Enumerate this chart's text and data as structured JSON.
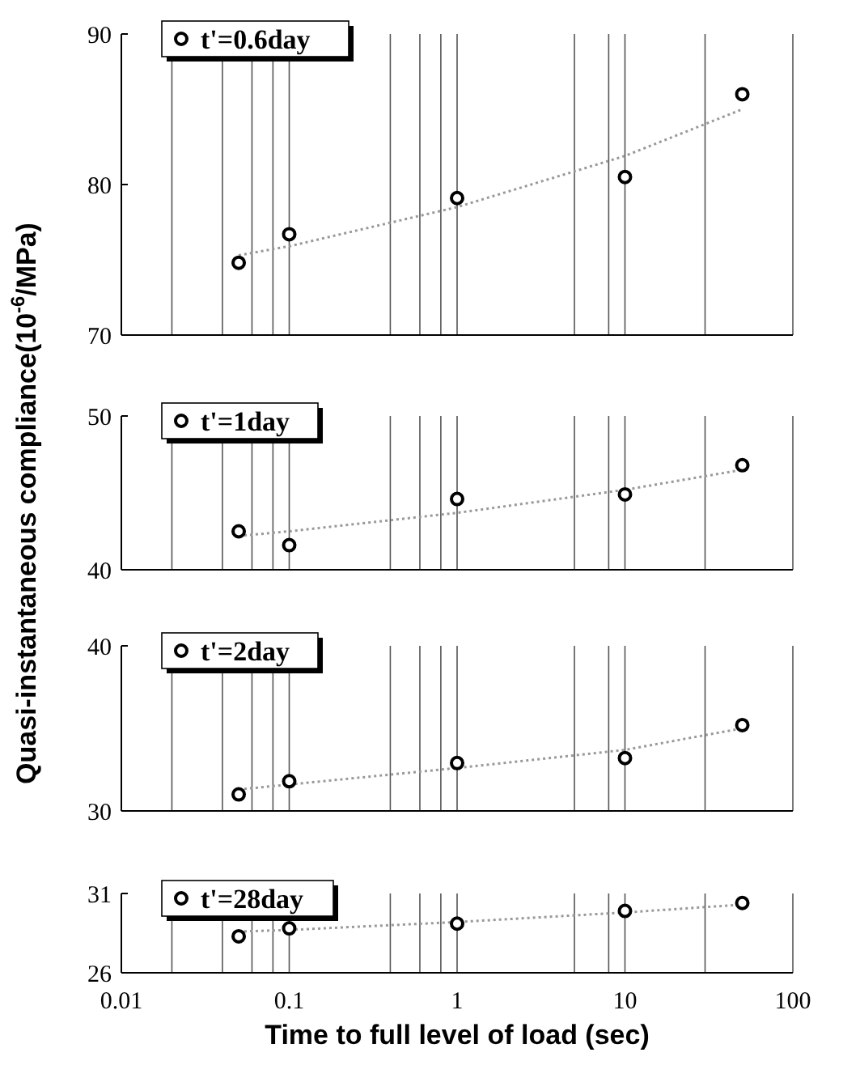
{
  "chart_data": [
    {
      "type": "scatter",
      "ylabel": "Quasi-instantaneous compliance(10$^{-6}$/MPa)",
      "xlim": [
        0.01,
        100
      ],
      "xticks": [
        0.01,
        {
          "value": 0.02,
          "label": null
        },
        {
          "value": 0.04,
          "label": null
        },
        {
          "value": 0.06,
          "label": null
        },
        {
          "value": 0.08,
          "label": null
        },
        0.1,
        {
          "value": 0.4,
          "label": null
        },
        {
          "value": 0.6,
          "label": null
        },
        {
          "value": 0.8,
          "label": null
        },
        1,
        {
          "value": 5,
          "label": null
        },
        {
          "value": 8,
          "label": null
        },
        10,
        {
          "value": 30,
          "label": null
        },
        100
      ],
      "ylim": [
        70,
        90
      ],
      "yticks": [
        70,
        80,
        90
      ],
      "log": "x",
      "grid": "x",
      "legend": "top left",
      "tick_labels": "y",
      "series": [
        {
          "name": "t'=0.6day",
          "color": "#000000",
          "marker": "circle",
          "x": [
            0.05,
            0.1,
            1,
            10,
            50
          ],
          "values": [
            74.8,
            76.7,
            79.1,
            80.5,
            86.0
          ]
        },
        {
          "type": "line",
          "color": "#999999",
          "line_style": "dotted",
          "x": [
            0.05,
            0.1,
            1,
            10,
            50
          ],
          "values": [
            75.3,
            75.9,
            78.5,
            81.9,
            85.0
          ]
        }
      ]
    },
    {
      "type": "scatter",
      "xlim": [
        0.01,
        100
      ],
      "xticks": [
        0.01,
        {
          "value": 0.02,
          "label": null
        },
        {
          "value": 0.04,
          "label": null
        },
        {
          "value": 0.06,
          "label": null
        },
        {
          "value": 0.08,
          "label": null
        },
        0.1,
        {
          "value": 0.4,
          "label": null
        },
        {
          "value": 0.6,
          "label": null
        },
        {
          "value": 0.8,
          "label": null
        },
        1,
        {
          "value": 5,
          "label": null
        },
        {
          "value": 8,
          "label": null
        },
        10,
        {
          "value": 30,
          "label": null
        },
        100
      ],
      "ylim": [
        40,
        50
      ],
      "yticks": [
        40,
        50
      ],
      "log": "x",
      "grid": "x",
      "legend": "top left",
      "tick_labels": "y",
      "series": [
        {
          "name": "t'=1day",
          "color": "#000000",
          "marker": "circle",
          "x": [
            0.05,
            0.1,
            1,
            10,
            50
          ],
          "values": [
            42.5,
            41.6,
            44.6,
            44.9,
            46.8
          ]
        },
        {
          "type": "line",
          "color": "#999999",
          "line_style": "dotted",
          "x": [
            0.05,
            0.1,
            1,
            10,
            50
          ],
          "values": [
            42.2,
            42.5,
            43.7,
            45.2,
            46.5
          ]
        }
      ]
    },
    {
      "type": "scatter",
      "xlim": [
        0.01,
        100
      ],
      "xticks": [
        0.01,
        {
          "value": 0.02,
          "label": null
        },
        {
          "value": 0.04,
          "label": null
        },
        {
          "value": 0.06,
          "label": null
        },
        {
          "value": 0.08,
          "label": null
        },
        0.1,
        {
          "value": 0.4,
          "label": null
        },
        {
          "value": 0.6,
          "label": null
        },
        {
          "value": 0.8,
          "label": null
        },
        1,
        {
          "value": 5,
          "label": null
        },
        {
          "value": 8,
          "label": null
        },
        10,
        {
          "value": 30,
          "label": null
        },
        100
      ],
      "ylim": [
        30,
        40
      ],
      "yticks": [
        30,
        40
      ],
      "log": "x",
      "grid": "x",
      "legend": "top left",
      "tick_labels": "y",
      "series": [
        {
          "name": "t'=2day",
          "color": "#000000",
          "marker": "circle",
          "x": [
            0.05,
            0.1,
            1,
            10,
            50
          ],
          "values": [
            31.0,
            31.8,
            32.9,
            33.2,
            35.2
          ]
        },
        {
          "type": "line",
          "color": "#999999",
          "line_style": "dotted",
          "x": [
            0.05,
            0.1,
            1,
            10,
            50
          ],
          "values": [
            31.3,
            31.6,
            32.6,
            33.7,
            35.0
          ]
        }
      ]
    },
    {
      "type": "scatter",
      "xlabel": "Time to full level of load (sec)",
      "xlim": [
        0.01,
        100
      ],
      "xticks": [
        0.01,
        {
          "value": 0.02,
          "label": null
        },
        {
          "value": 0.04,
          "label": null
        },
        {
          "value": 0.06,
          "label": null
        },
        {
          "value": 0.08,
          "label": null
        },
        0.1,
        {
          "value": 0.4,
          "label": null
        },
        {
          "value": 0.6,
          "label": null
        },
        {
          "value": 0.8,
          "label": null
        },
        1,
        {
          "value": 5,
          "label": null
        },
        {
          "value": 8,
          "label": null
        },
        10,
        {
          "value": 30,
          "label": null
        },
        100
      ],
      "ylim": [
        26,
        31
      ],
      "yticks": [
        26,
        31
      ],
      "log": "x",
      "grid": "x",
      "legend": "top left",
      "series": [
        {
          "name": "t'=28day",
          "color": "#000000",
          "marker": "circle",
          "x": [
            0.05,
            0.1,
            1,
            10,
            50
          ],
          "values": [
            28.3,
            28.8,
            29.1,
            29.9,
            30.4
          ]
        },
        {
          "type": "line",
          "color": "#999999",
          "line_style": "dotted",
          "x": [
            0.05,
            0.1,
            1,
            10,
            50
          ],
          "values": [
            28.6,
            28.7,
            29.2,
            29.8,
            30.3
          ]
        }
      ]
    }
  ]
}
